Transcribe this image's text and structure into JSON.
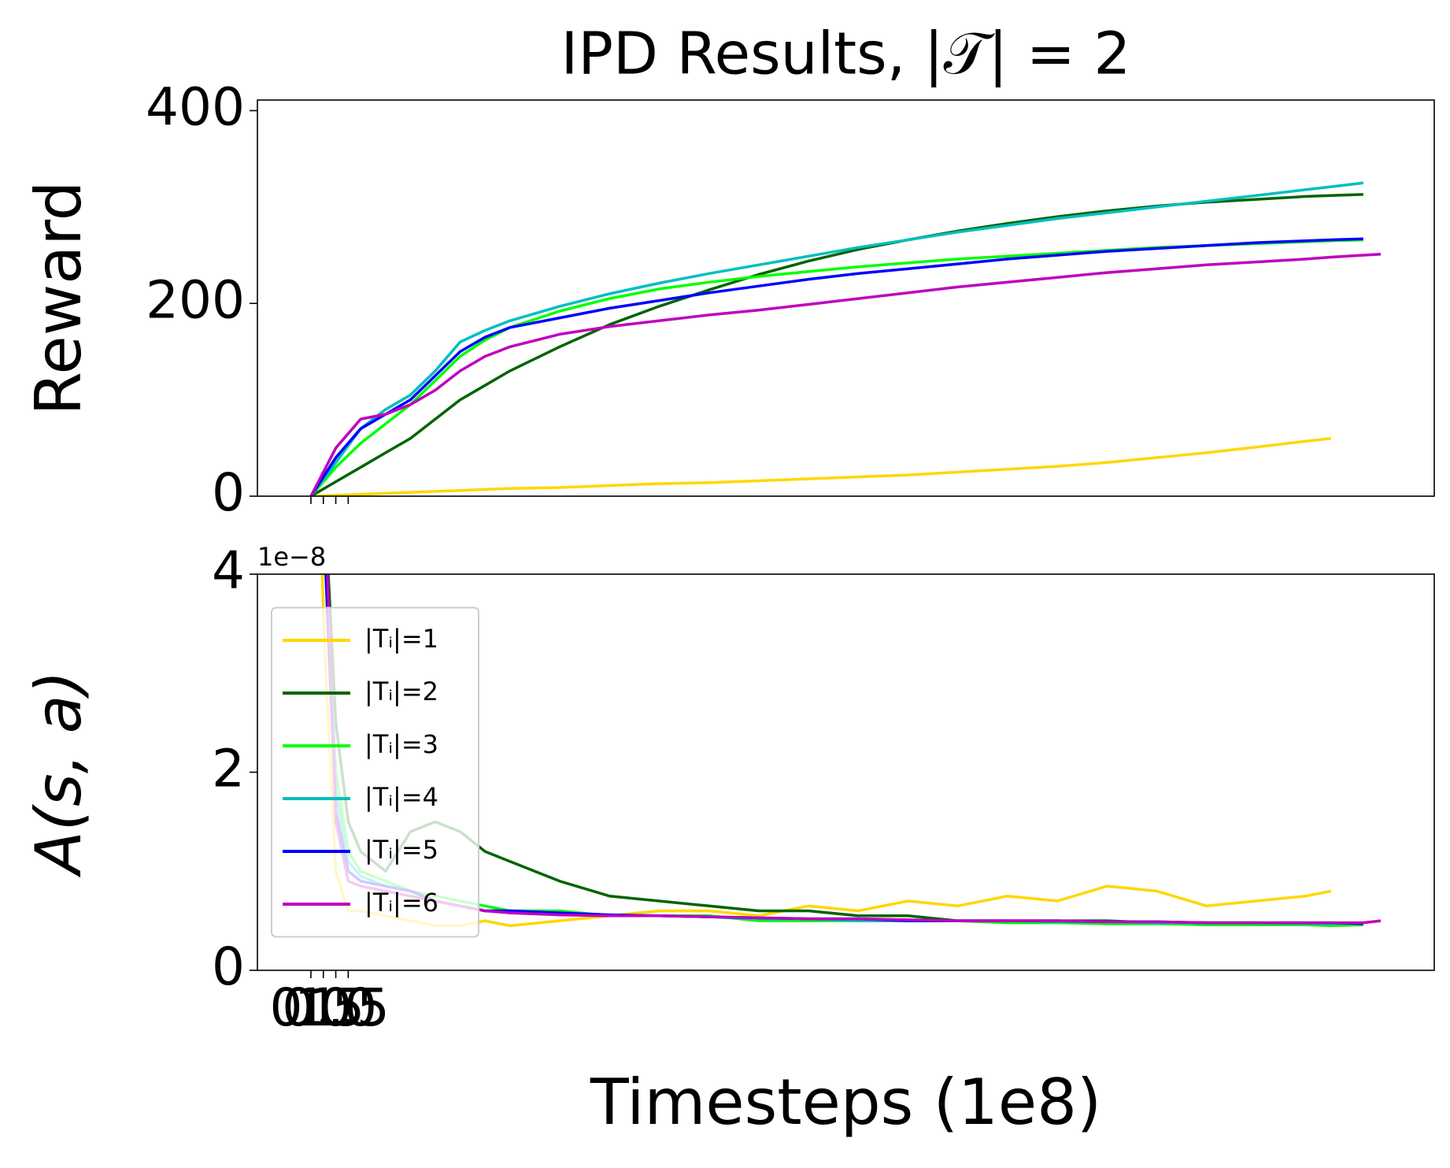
{
  "chart_data": [
    {
      "type": "line",
      "title": "IPD Results, |𝒯| = 2",
      "y_label": "Reward",
      "x": [
        0,
        1,
        2,
        3,
        4,
        5,
        6,
        7,
        8,
        10,
        12,
        14,
        16,
        18,
        20,
        22,
        24,
        26,
        28,
        30,
        32,
        34,
        36,
        38,
        40,
        41,
        42.3,
        43
      ],
      "xlim": [
        -2.15,
        45.15
      ],
      "xticks": [
        0,
        0.5,
        1,
        1.5
      ],
      "ylim": [
        0,
        411
      ],
      "yticks": [
        0,
        200,
        400
      ],
      "series": [
        {
          "name": "|Tᵢ|=1",
          "color": "#ffd700",
          "values": [
            0,
            1,
            2,
            3,
            4,
            5,
            6,
            7,
            8,
            9,
            11,
            13,
            14,
            16,
            18,
            20,
            22,
            25,
            28,
            31,
            35,
            40,
            45,
            51,
            57,
            60,
            null,
            null
          ]
        },
        {
          "name": "|Tᵢ|=2",
          "color": "#006400",
          "values": [
            0,
            15,
            30,
            45,
            60,
            80,
            100,
            115,
            130,
            155,
            178,
            197,
            214,
            230,
            244,
            256,
            266,
            275,
            283,
            290,
            296,
            301,
            305,
            308,
            311,
            312,
            313,
            null
          ]
        },
        {
          "name": "|Tᵢ|=3",
          "color": "#00ff00",
          "values": [
            0,
            30,
            55,
            75,
            95,
            120,
            145,
            162,
            175,
            192,
            205,
            215,
            222,
            228,
            233,
            238,
            242,
            246,
            249,
            252,
            255,
            258,
            260,
            262,
            264,
            265,
            266,
            null
          ]
        },
        {
          "name": "|Tᵢ|=4",
          "color": "#00bfbf",
          "values": [
            0,
            35,
            70,
            90,
            105,
            130,
            160,
            172,
            182,
            197,
            210,
            221,
            231,
            240,
            249,
            258,
            266,
            274,
            281,
            288,
            294,
            300,
            306,
            312,
            318,
            321,
            325,
            null
          ]
        },
        {
          "name": "|Tᵢ|=5",
          "color": "#0000ff",
          "values": [
            0,
            40,
            70,
            85,
            100,
            125,
            150,
            165,
            175,
            185,
            195,
            203,
            211,
            218,
            225,
            231,
            236,
            241,
            246,
            250,
            254,
            257,
            260,
            263,
            265,
            266,
            267,
            null
          ]
        },
        {
          "name": "|Tᵢ|=6",
          "color": "#bf00bf",
          "values": [
            0,
            50,
            80,
            85,
            95,
            110,
            130,
            145,
            155,
            168,
            176,
            182,
            188,
            193,
            199,
            205,
            211,
            217,
            222,
            227,
            232,
            236,
            240,
            243,
            246,
            248,
            250,
            251
          ]
        }
      ]
    },
    {
      "type": "line",
      "x_label": "Timesteps (1e8)",
      "y_label": "A(s, a)",
      "y_offset_label": "1e−8",
      "legend": "center left",
      "x": [
        0.3,
        0.6,
        1,
        1.5,
        2,
        3,
        4,
        5,
        6,
        7,
        8,
        10,
        12,
        14,
        16,
        18,
        20,
        22,
        24,
        26,
        28,
        30,
        32,
        34,
        36,
        38,
        40,
        41,
        42.3,
        43
      ],
      "xlim": [
        -2.15,
        45.15
      ],
      "xticks": [
        {
          "value": 0,
          "label": "0.0"
        },
        {
          "value": 0.5,
          "label": "0.5"
        },
        {
          "value": 1,
          "label": "1.0"
        },
        {
          "value": 1.5,
          "label": "1.5"
        }
      ],
      "ylim": [
        0,
        4
      ],
      "yticks": [
        0,
        2,
        4
      ],
      "series": [
        {
          "name": "|Tᵢ|=1",
          "color": "#ffd700",
          "values": [
            5,
            3,
            1,
            0.6,
            0.6,
            0.55,
            0.5,
            0.45,
            0.45,
            0.5,
            0.45,
            0.5,
            0.55,
            0.6,
            0.6,
            0.55,
            0.65,
            0.6,
            0.7,
            0.65,
            0.75,
            0.7,
            0.85,
            0.8,
            0.65,
            0.7,
            0.75,
            0.8,
            null,
            null
          ]
        },
        {
          "name": "|Tᵢ|=2",
          "color": "#006400",
          "values": [
            5,
            4.5,
            2.5,
            1.5,
            1.2,
            1.0,
            1.4,
            1.5,
            1.4,
            1.2,
            1.1,
            0.9,
            0.75,
            0.7,
            0.65,
            0.6,
            0.6,
            0.55,
            0.55,
            0.5,
            0.5,
            0.5,
            0.5,
            0.48,
            0.48,
            0.47,
            0.47,
            0.46,
            0.47,
            null
          ]
        },
        {
          "name": "|Tᵢ|=3",
          "color": "#00ff00",
          "values": [
            5,
            4,
            2,
            1.2,
            1.0,
            0.9,
            0.8,
            0.75,
            0.7,
            0.65,
            0.6,
            0.6,
            0.55,
            0.55,
            0.55,
            0.5,
            0.5,
            0.5,
            0.5,
            0.5,
            0.48,
            0.48,
            0.47,
            0.47,
            0.46,
            0.46,
            0.46,
            0.45,
            0.46,
            null
          ]
        },
        {
          "name": "|Tᵢ|=4",
          "color": "#00bfbf",
          "values": [
            5,
            4.2,
            1.8,
            1.1,
            0.95,
            0.85,
            0.8,
            0.7,
            0.65,
            0.6,
            0.6,
            0.58,
            0.56,
            0.55,
            0.54,
            0.52,
            0.52,
            0.5,
            0.5,
            0.5,
            0.5,
            0.49,
            0.49,
            0.48,
            0.48,
            0.48,
            0.47,
            0.47,
            0.48,
            null
          ]
        },
        {
          "name": "|Tᵢ|=5",
          "color": "#0000ff",
          "values": [
            5,
            4,
            1.6,
            1.0,
            0.9,
            0.85,
            0.8,
            0.7,
            0.65,
            0.6,
            0.6,
            0.58,
            0.56,
            0.55,
            0.54,
            0.53,
            0.52,
            0.52,
            0.5,
            0.5,
            0.5,
            0.5,
            0.49,
            0.49,
            0.48,
            0.48,
            0.48,
            0.48,
            0.47,
            null
          ]
        },
        {
          "name": "|Tᵢ|=6",
          "color": "#bf00bf",
          "values": [
            5,
            4.5,
            1.5,
            0.9,
            0.85,
            0.8,
            0.75,
            0.7,
            0.65,
            0.6,
            0.58,
            0.56,
            0.55,
            0.55,
            0.54,
            0.53,
            0.52,
            0.52,
            0.51,
            0.5,
            0.5,
            0.5,
            0.49,
            0.49,
            0.48,
            0.48,
            0.48,
            0.48,
            0.48,
            0.5
          ]
        }
      ]
    }
  ]
}
